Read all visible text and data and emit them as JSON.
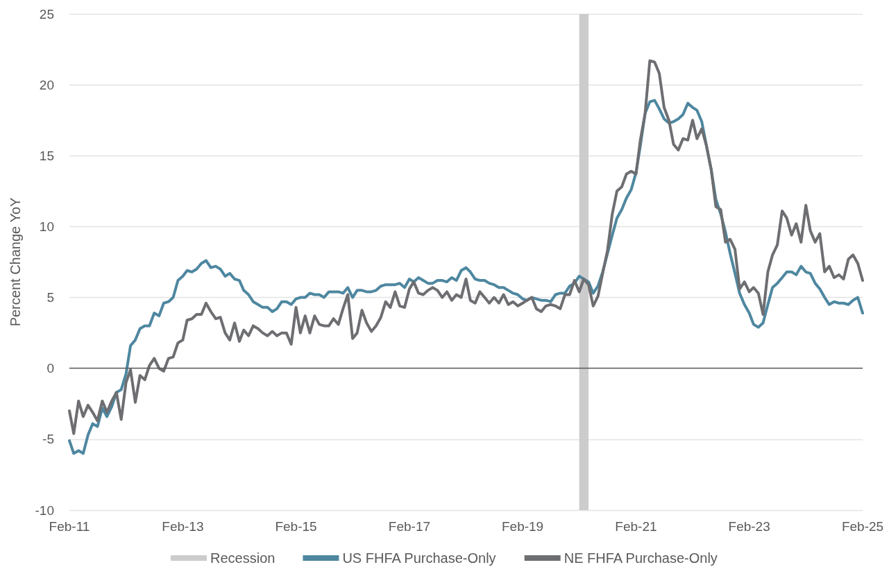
{
  "chart_data": {
    "type": "line",
    "ylabel": "Percent Change YoY",
    "x": [
      "2011-02",
      "2011-03",
      "2011-04",
      "2011-05",
      "2011-06",
      "2011-07",
      "2011-08",
      "2011-09",
      "2011-10",
      "2011-11",
      "2011-12",
      "2012-01",
      "2012-02",
      "2012-03",
      "2012-04",
      "2012-05",
      "2012-06",
      "2012-07",
      "2012-08",
      "2012-09",
      "2012-10",
      "2012-11",
      "2012-12",
      "2013-01",
      "2013-02",
      "2013-03",
      "2013-04",
      "2013-05",
      "2013-06",
      "2013-07",
      "2013-08",
      "2013-09",
      "2013-10",
      "2013-11",
      "2013-12",
      "2014-01",
      "2014-02",
      "2014-03",
      "2014-04",
      "2014-05",
      "2014-06",
      "2014-07",
      "2014-08",
      "2014-09",
      "2014-10",
      "2014-11",
      "2014-12",
      "2015-01",
      "2015-02",
      "2015-03",
      "2015-04",
      "2015-05",
      "2015-06",
      "2015-07",
      "2015-08",
      "2015-09",
      "2015-10",
      "2015-11",
      "2015-12",
      "2016-01",
      "2016-02",
      "2016-03",
      "2016-04",
      "2016-05",
      "2016-06",
      "2016-07",
      "2016-08",
      "2016-09",
      "2016-10",
      "2016-11",
      "2016-12",
      "2017-01",
      "2017-02",
      "2017-03",
      "2017-04",
      "2017-05",
      "2017-06",
      "2017-07",
      "2017-08",
      "2017-09",
      "2017-10",
      "2017-11",
      "2017-12",
      "2018-01",
      "2018-02",
      "2018-03",
      "2018-04",
      "2018-05",
      "2018-06",
      "2018-07",
      "2018-08",
      "2018-09",
      "2018-10",
      "2018-11",
      "2018-12",
      "2019-01",
      "2019-02",
      "2019-03",
      "2019-04",
      "2019-05",
      "2019-06",
      "2019-07",
      "2019-08",
      "2019-09",
      "2019-10",
      "2019-11",
      "2019-12",
      "2020-01",
      "2020-02",
      "2020-03",
      "2020-04",
      "2020-05",
      "2020-06",
      "2020-07",
      "2020-08",
      "2020-09",
      "2020-10",
      "2020-11",
      "2020-12",
      "2021-01",
      "2021-02",
      "2021-03",
      "2021-04",
      "2021-05",
      "2021-06",
      "2021-07",
      "2021-08",
      "2021-09",
      "2021-10",
      "2021-11",
      "2021-12",
      "2022-01",
      "2022-02",
      "2022-03",
      "2022-04",
      "2022-05",
      "2022-06",
      "2022-07",
      "2022-08",
      "2022-09",
      "2022-10",
      "2022-11",
      "2022-12",
      "2023-01",
      "2023-02",
      "2023-03",
      "2023-04",
      "2023-05",
      "2023-06",
      "2023-07",
      "2023-08",
      "2023-09",
      "2023-10",
      "2023-11",
      "2023-12",
      "2024-01",
      "2024-02",
      "2024-03",
      "2024-04",
      "2024-05",
      "2024-06",
      "2024-07",
      "2024-08",
      "2024-09",
      "2024-10",
      "2024-11",
      "2024-12",
      "2025-01",
      "2025-02"
    ],
    "series": [
      {
        "name": "US FHFA Purchase-Only",
        "color": "#4e87a0",
        "values": [
          -5.1,
          -6.0,
          -5.8,
          -6.0,
          -4.7,
          -3.9,
          -4.1,
          -2.8,
          -3.4,
          -2.7,
          -1.7,
          -1.5,
          -0.4,
          1.6,
          2.0,
          2.8,
          3.0,
          3.0,
          3.9,
          3.7,
          4.6,
          4.7,
          5.0,
          6.2,
          6.5,
          6.9,
          6.8,
          7.0,
          7.4,
          7.6,
          7.1,
          7.2,
          7.0,
          6.5,
          6.7,
          6.3,
          6.2,
          5.5,
          5.2,
          4.7,
          4.5,
          4.3,
          4.3,
          4.0,
          4.2,
          4.7,
          4.7,
          4.5,
          4.9,
          5.0,
          5.0,
          5.3,
          5.2,
          5.2,
          5.0,
          5.4,
          5.4,
          5.4,
          5.3,
          5.7,
          5.0,
          5.5,
          5.5,
          5.4,
          5.4,
          5.5,
          5.8,
          5.9,
          5.9,
          5.9,
          6.0,
          5.7,
          6.3,
          6.1,
          6.4,
          6.2,
          6.0,
          6.0,
          6.2,
          6.2,
          6.1,
          6.4,
          6.2,
          6.9,
          7.1,
          6.8,
          6.3,
          6.2,
          6.2,
          6.0,
          5.9,
          5.7,
          5.7,
          5.5,
          5.3,
          5.2,
          4.9,
          4.8,
          5.0,
          4.9,
          4.8,
          4.8,
          4.7,
          5.2,
          5.3,
          5.3,
          5.8,
          6.0,
          6.5,
          6.3,
          6.1,
          5.3,
          5.8,
          6.8,
          8.1,
          9.4,
          10.6,
          11.2,
          12.0,
          12.6,
          13.8,
          15.7,
          18.0,
          18.8,
          18.9,
          18.3,
          17.6,
          17.3,
          17.4,
          17.6,
          17.9,
          18.7,
          18.4,
          18.2,
          17.4,
          15.7,
          14.0,
          11.9,
          10.9,
          9.6,
          8.1,
          6.7,
          5.3,
          4.5,
          3.9,
          3.1,
          2.9,
          3.2,
          4.5,
          5.7,
          6.0,
          6.4,
          6.8,
          6.8,
          6.6,
          7.2,
          6.8,
          6.7,
          6.0,
          5.6,
          5.0,
          4.5,
          4.7,
          4.6,
          4.6,
          4.5,
          4.8,
          5.0,
          3.9
        ]
      },
      {
        "name": "NE FHFA Purchase-Only",
        "color": "#6d6e71",
        "values": [
          -3.0,
          -4.6,
          -2.3,
          -3.4,
          -2.6,
          -3.1,
          -3.7,
          -2.3,
          -3.1,
          -2.3,
          -1.7,
          -3.6,
          -1.0,
          -0.1,
          -2.4,
          -0.5,
          -0.8,
          0.2,
          0.7,
          0.0,
          -0.2,
          0.7,
          0.8,
          1.8,
          2.0,
          3.4,
          3.5,
          3.8,
          3.8,
          4.6,
          4.0,
          3.5,
          3.6,
          2.5,
          2.0,
          3.2,
          1.9,
          2.7,
          2.3,
          3.0,
          2.8,
          2.5,
          2.3,
          2.6,
          2.3,
          2.5,
          2.5,
          1.7,
          4.3,
          2.5,
          3.7,
          2.5,
          3.7,
          3.1,
          3.0,
          3.0,
          3.5,
          3.1,
          4.2,
          5.2,
          2.1,
          2.5,
          4.1,
          3.2,
          2.6,
          3.0,
          3.6,
          4.7,
          4.3,
          5.4,
          4.4,
          4.3,
          5.6,
          6.1,
          5.3,
          5.2,
          5.5,
          5.7,
          5.5,
          5.0,
          5.4,
          4.8,
          5.2,
          5.0,
          6.3,
          4.8,
          4.6,
          5.4,
          5.0,
          4.6,
          5.0,
          4.6,
          5.2,
          4.5,
          4.7,
          4.4,
          4.6,
          4.8,
          5.0,
          4.2,
          4.0,
          4.4,
          4.5,
          4.4,
          4.2,
          5.2,
          5.2,
          6.2,
          5.4,
          6.3,
          5.9,
          4.4,
          5.1,
          6.7,
          8.3,
          10.9,
          12.5,
          12.8,
          13.7,
          13.9,
          13.7,
          16.1,
          18.0,
          21.7,
          21.6,
          20.8,
          18.4,
          17.5,
          15.8,
          15.4,
          16.2,
          16.1,
          17.5,
          16.2,
          16.9,
          15.7,
          14.0,
          11.4,
          11.2,
          8.9,
          9.1,
          8.4,
          5.6,
          6.1,
          5.4,
          5.7,
          5.3,
          3.8,
          6.8,
          8.0,
          8.7,
          11.1,
          10.6,
          9.4,
          10.2,
          8.9,
          11.5,
          9.7,
          8.9,
          9.5,
          6.8,
          7.2,
          6.4,
          6.6,
          6.3,
          7.7,
          8.0,
          7.4,
          6.2
        ]
      }
    ],
    "bands": [
      {
        "axis": "x",
        "from": "2020-02",
        "to": "2020-04",
        "label": "Recession",
        "color": "#cccccc"
      }
    ],
    "ref_lines": [
      {
        "axis": "y",
        "value": 0,
        "color": "#595959"
      }
    ],
    "xlim": [
      "2011-02",
      "2025-02"
    ],
    "xticks": [
      {
        "value": "2011-02",
        "label": "Feb-11"
      },
      {
        "value": "2013-02",
        "label": "Feb-13"
      },
      {
        "value": "2015-02",
        "label": "Feb-15"
      },
      {
        "value": "2017-02",
        "label": "Feb-17"
      },
      {
        "value": "2019-02",
        "label": "Feb-19"
      },
      {
        "value": "2021-02",
        "label": "Feb-21"
      },
      {
        "value": "2023-02",
        "label": "Feb-23"
      },
      {
        "value": "2025-02",
        "label": "Feb-25"
      }
    ],
    "ylim": [
      -10,
      25
    ],
    "yticks": [
      -10,
      -5,
      0,
      5,
      10,
      15,
      20,
      25
    ],
    "grid": "y",
    "legend": "bottom",
    "marker": "none",
    "line_style": "solid"
  }
}
